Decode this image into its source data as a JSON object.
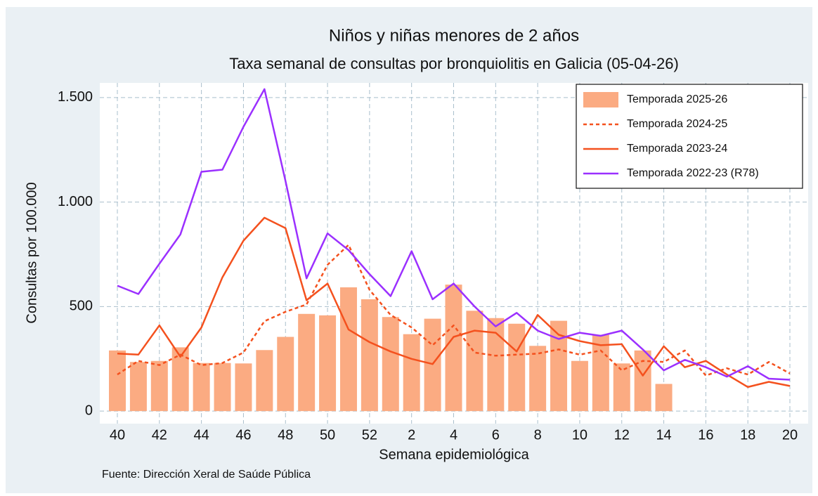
{
  "chart_data": {
    "type": "bar-line",
    "title": "Niños y niñas menores de 2 años",
    "subtitle": "Taxa semanal de consultas por bronquiolitis en Galicia (05-04-26)",
    "x_label": "Semana epidemiológica",
    "y_label": "Consultas por 100.000",
    "source": "Fuente: Dirección Xeral de Saúde Pública",
    "categories": [
      "40",
      null,
      "42",
      null,
      "44",
      null,
      "46",
      null,
      "48",
      null,
      "50",
      null,
      "52",
      null,
      "2",
      null,
      "4",
      null,
      "6",
      null,
      "8",
      null,
      "10",
      null,
      "12",
      null,
      "14",
      null,
      "16",
      null,
      "18",
      null,
      "20"
    ],
    "ylim": [
      -60,
      1570
    ],
    "yticks": [
      0,
      500,
      {
        "value": 1000,
        "label": "1.000"
      },
      {
        "value": 1500,
        "label": "1.500"
      }
    ],
    "grid": true,
    "legend": "upper right",
    "series": [
      {
        "name": "Temporada 2025-26",
        "kind": "bar",
        "color": "#fbab82",
        "values": [
          290,
          235,
          240,
          305,
          230,
          230,
          228,
          292,
          355,
          465,
          458,
          592,
          535,
          450,
          368,
          442,
          605,
          480,
          445,
          418,
          312,
          432,
          240,
          365,
          228,
          290,
          130,
          null,
          null,
          null,
          null,
          null,
          null
        ]
      },
      {
        "name": "Temporada 2024-25",
        "kind": "line",
        "dash": true,
        "color": "#f4511e",
        "values": [
          175,
          240,
          220,
          270,
          220,
          230,
          280,
          430,
          475,
          510,
          700,
          795,
          580,
          460,
          400,
          315,
          410,
          280,
          265,
          270,
          275,
          295,
          270,
          290,
          195,
          240,
          235,
          290,
          170,
          205,
          175,
          235,
          180
        ]
      },
      {
        "name": "Temporada 2023-24",
        "kind": "line",
        "dash": false,
        "color": "#f4511e",
        "values": [
          275,
          270,
          410,
          260,
          400,
          640,
          815,
          925,
          875,
          530,
          610,
          390,
          330,
          285,
          250,
          225,
          355,
          385,
          375,
          285,
          460,
          365,
          335,
          315,
          320,
          170,
          310,
          210,
          240,
          175,
          115,
          140,
          120
        ]
      },
      {
        "name": "Temporada 2022-23 (R78)",
        "kind": "line",
        "dash": false,
        "color": "#9b30ff",
        "values": [
          600,
          560,
          705,
          845,
          1145,
          1155,
          1360,
          1540,
          1100,
          635,
          850,
          770,
          655,
          550,
          765,
          535,
          610,
          500,
          405,
          470,
          385,
          345,
          375,
          360,
          385,
          295,
          195,
          245,
          210,
          165,
          215,
          155,
          150
        ]
      }
    ]
  }
}
